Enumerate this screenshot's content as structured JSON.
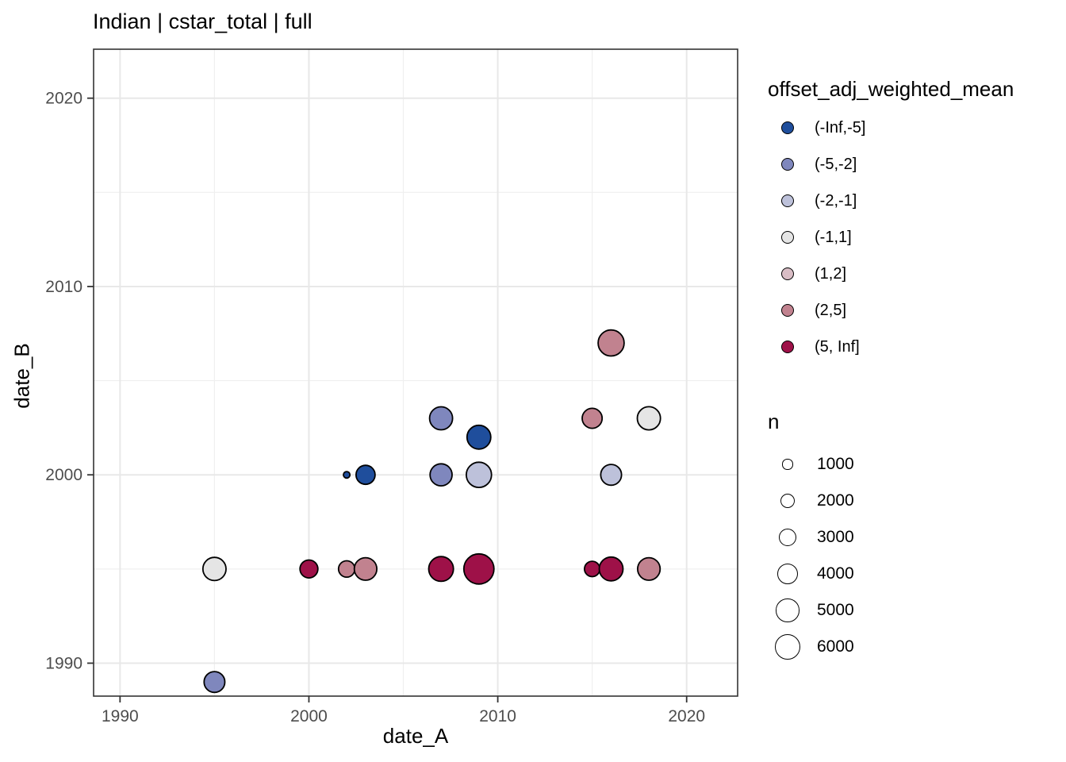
{
  "title": "Indian | cstar_total | full",
  "chart_data": {
    "type": "scatter",
    "title": "Indian | cstar_total | full",
    "xlabel": "date_A",
    "ylabel": "date_B",
    "xlim": [
      1988.6,
      2022.7
    ],
    "ylim": [
      1988.25,
      2022.6
    ],
    "x_ticks": [
      1990,
      2000,
      2010,
      2020
    ],
    "y_ticks": [
      1990,
      2000,
      2010,
      2020
    ],
    "x_minor_ticks": [
      1995,
      2005,
      2015
    ],
    "y_minor_ticks": [
      1995,
      2005,
      2015
    ],
    "grid": true,
    "legend_position": "right",
    "color_legend": {
      "title": "offset_adj_weighted_mean",
      "entries": [
        {
          "label": "(-Inf,-5]",
          "color": "#1f4e9c"
        },
        {
          "label": "(-5,-2]",
          "color": "#7f87bd"
        },
        {
          "label": "(-2,-1]",
          "color": "#bdc1da"
        },
        {
          "label": "(-1,1]",
          "color": "#e5e5e5"
        },
        {
          "label": "(1,2]",
          "color": "#d9bdc5"
        },
        {
          "label": "(2,5]",
          "color": "#c1828f"
        },
        {
          "label": "(5, Inf]",
          "color": "#9e1148"
        }
      ]
    },
    "size_legend": {
      "title": "n",
      "entries": [
        1000,
        2000,
        3000,
        4000,
        5000,
        6000
      ]
    },
    "size_scale": {
      "radius_px_per_sqrt_n": 0.2065
    },
    "points": [
      {
        "x": 1995,
        "y": 1995,
        "n": 5000,
        "bin": "(-1,1]"
      },
      {
        "x": 1995,
        "y": 1989,
        "n": 4000,
        "bin": "(-5,-2]"
      },
      {
        "x": 2000,
        "y": 1995,
        "n": 3000,
        "bin": "(5, Inf]"
      },
      {
        "x": 2002,
        "y": 1995,
        "n": 2500,
        "bin": "(2,5]"
      },
      {
        "x": 2003,
        "y": 1995,
        "n": 4700,
        "bin": "(2,5]"
      },
      {
        "x": 2002,
        "y": 2000,
        "n": 400,
        "bin": "(-Inf,-5]"
      },
      {
        "x": 2003,
        "y": 2000,
        "n": 3400,
        "bin": "(-Inf,-5]"
      },
      {
        "x": 2007,
        "y": 2003,
        "n": 4900,
        "bin": "(-5,-2]"
      },
      {
        "x": 2007,
        "y": 2000,
        "n": 4500,
        "bin": "(-5,-2]"
      },
      {
        "x": 2009,
        "y": 2002,
        "n": 5300,
        "bin": "(-Inf,-5]"
      },
      {
        "x": 2009,
        "y": 2000,
        "n": 5900,
        "bin": "(-2,-1]"
      },
      {
        "x": 2007,
        "y": 1995,
        "n": 5700,
        "bin": "(5, Inf]"
      },
      {
        "x": 2009,
        "y": 1995,
        "n": 8500,
        "bin": "(5, Inf]"
      },
      {
        "x": 2015,
        "y": 2003,
        "n": 3700,
        "bin": "(2,5]"
      },
      {
        "x": 2016,
        "y": 2007,
        "n": 6300,
        "bin": "(2,5]"
      },
      {
        "x": 2016,
        "y": 2000,
        "n": 4000,
        "bin": "(-2,-1]"
      },
      {
        "x": 2018,
        "y": 2003,
        "n": 5000,
        "bin": "(-1,1]"
      },
      {
        "x": 2015,
        "y": 1995,
        "n": 2200,
        "bin": "(5, Inf]"
      },
      {
        "x": 2016,
        "y": 1995,
        "n": 5300,
        "bin": "(5, Inf]"
      },
      {
        "x": 2018,
        "y": 1995,
        "n": 4700,
        "bin": "(2,5]"
      }
    ],
    "style_colors": {
      "tick_label": "#4d4d4d",
      "grid_major": "#e8e8e8",
      "grid_minor": "#efefef",
      "panel_border": "#333333",
      "point_stroke": "#000000",
      "background": "#ffffff"
    }
  }
}
